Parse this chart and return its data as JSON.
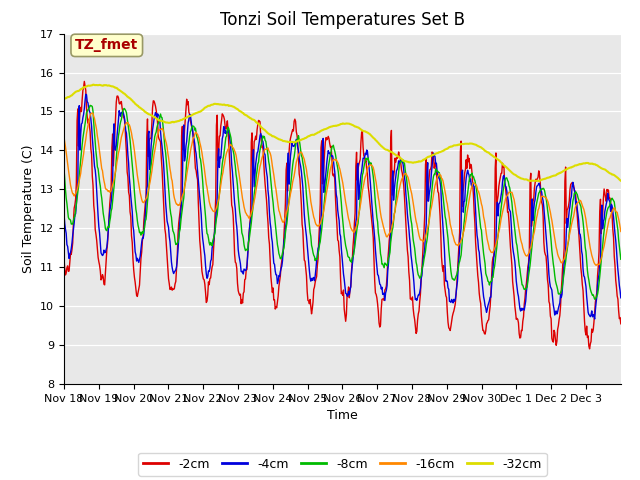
{
  "title": "Tonzi Soil Temperatures Set B",
  "xlabel": "Time",
  "ylabel": "Soil Temperature (C)",
  "ylim": [
    8.0,
    17.0
  ],
  "yticks": [
    8.0,
    9.0,
    10.0,
    11.0,
    12.0,
    13.0,
    14.0,
    15.0,
    16.0,
    17.0
  ],
  "date_labels": [
    "Nov 18",
    "Nov 19",
    "Nov 20",
    "Nov 21",
    "Nov 22",
    "Nov 23",
    "Nov 24",
    "Nov 25",
    "Nov 26",
    "Nov 27",
    "Nov 28",
    "Nov 29",
    "Nov 30",
    "Dec 1",
    "Dec 2",
    "Dec 3"
  ],
  "series": {
    "-2cm": {
      "color": "#dd0000",
      "linewidth": 1.0
    },
    "-4cm": {
      "color": "#0000dd",
      "linewidth": 1.0
    },
    "-8cm": {
      "color": "#00bb00",
      "linewidth": 1.0
    },
    "-16cm": {
      "color": "#ff8800",
      "linewidth": 1.0
    },
    "-32cm": {
      "color": "#dddd00",
      "linewidth": 1.5
    }
  },
  "legend_order": [
    "-2cm",
    "-4cm",
    "-8cm",
    "-16cm",
    "-32cm"
  ],
  "annotation_text": "TZ_fmet",
  "annotation_color": "#aa0000",
  "annotation_bg": "#ffffcc",
  "plot_bg": "#e8e8e8",
  "fig_bg": "#ffffff",
  "title_fontsize": 12,
  "label_fontsize": 9,
  "tick_fontsize": 8,
  "n_points_per_day": 48
}
